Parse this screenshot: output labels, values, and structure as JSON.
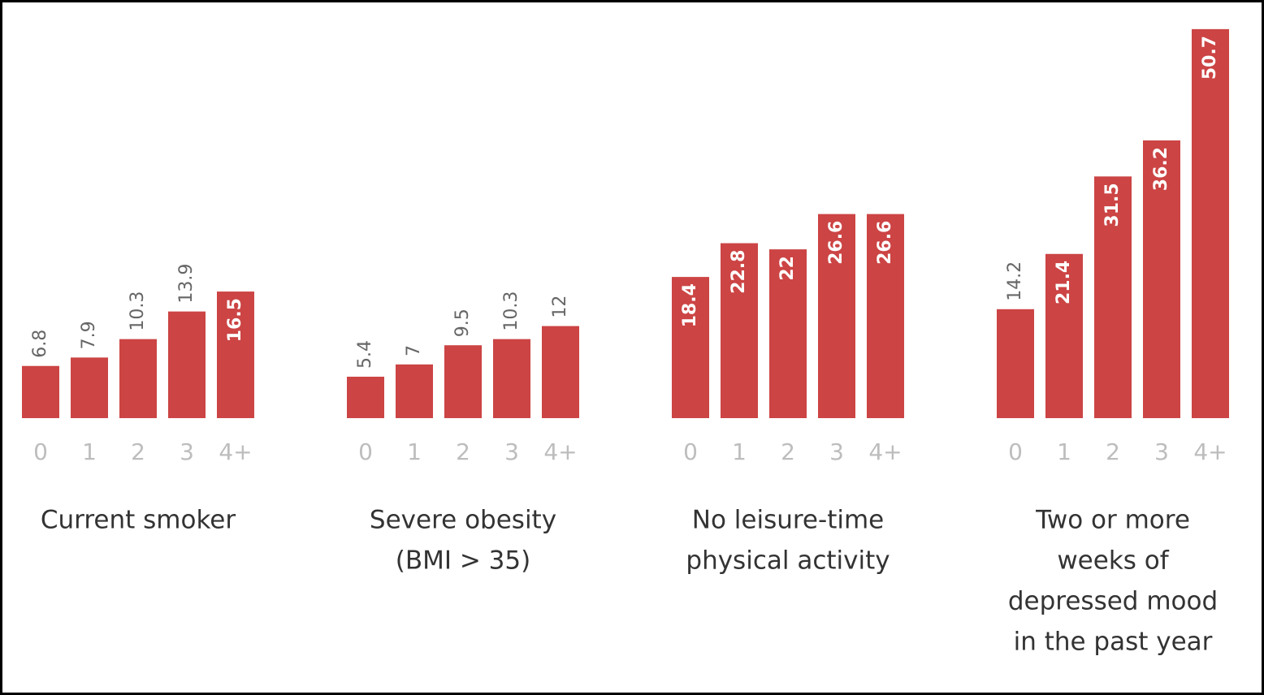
{
  "chart_data": [
    {
      "type": "bar",
      "title": [
        "Current smoker"
      ],
      "categories": [
        "0",
        "1",
        "2",
        "3",
        "4+"
      ],
      "values": [
        6.8,
        7.9,
        10.3,
        13.9,
        16.5
      ],
      "color": "#cc4444"
    },
    {
      "type": "bar",
      "title": [
        "Severe obesity",
        "(BMI > 35)"
      ],
      "categories": [
        "0",
        "1",
        "2",
        "3",
        "4+"
      ],
      "values": [
        5.4,
        7,
        9.5,
        10.3,
        12
      ],
      "color": "#cc4444"
    },
    {
      "type": "bar",
      "title": [
        "No leisure-time",
        "physical activity"
      ],
      "categories": [
        "0",
        "1",
        "2",
        "3",
        "4+"
      ],
      "values": [
        18.4,
        22.8,
        22,
        26.6,
        26.6
      ],
      "color": "#cc4444"
    },
    {
      "type": "bar",
      "title": [
        "Two or more",
        "weeks of",
        "depressed mood",
        "in the past year"
      ],
      "categories": [
        "0",
        "1",
        "2",
        "3",
        "4+"
      ],
      "values": [
        14.2,
        21.4,
        31.5,
        36.2,
        50.7
      ],
      "color": "#cc4444"
    }
  ]
}
